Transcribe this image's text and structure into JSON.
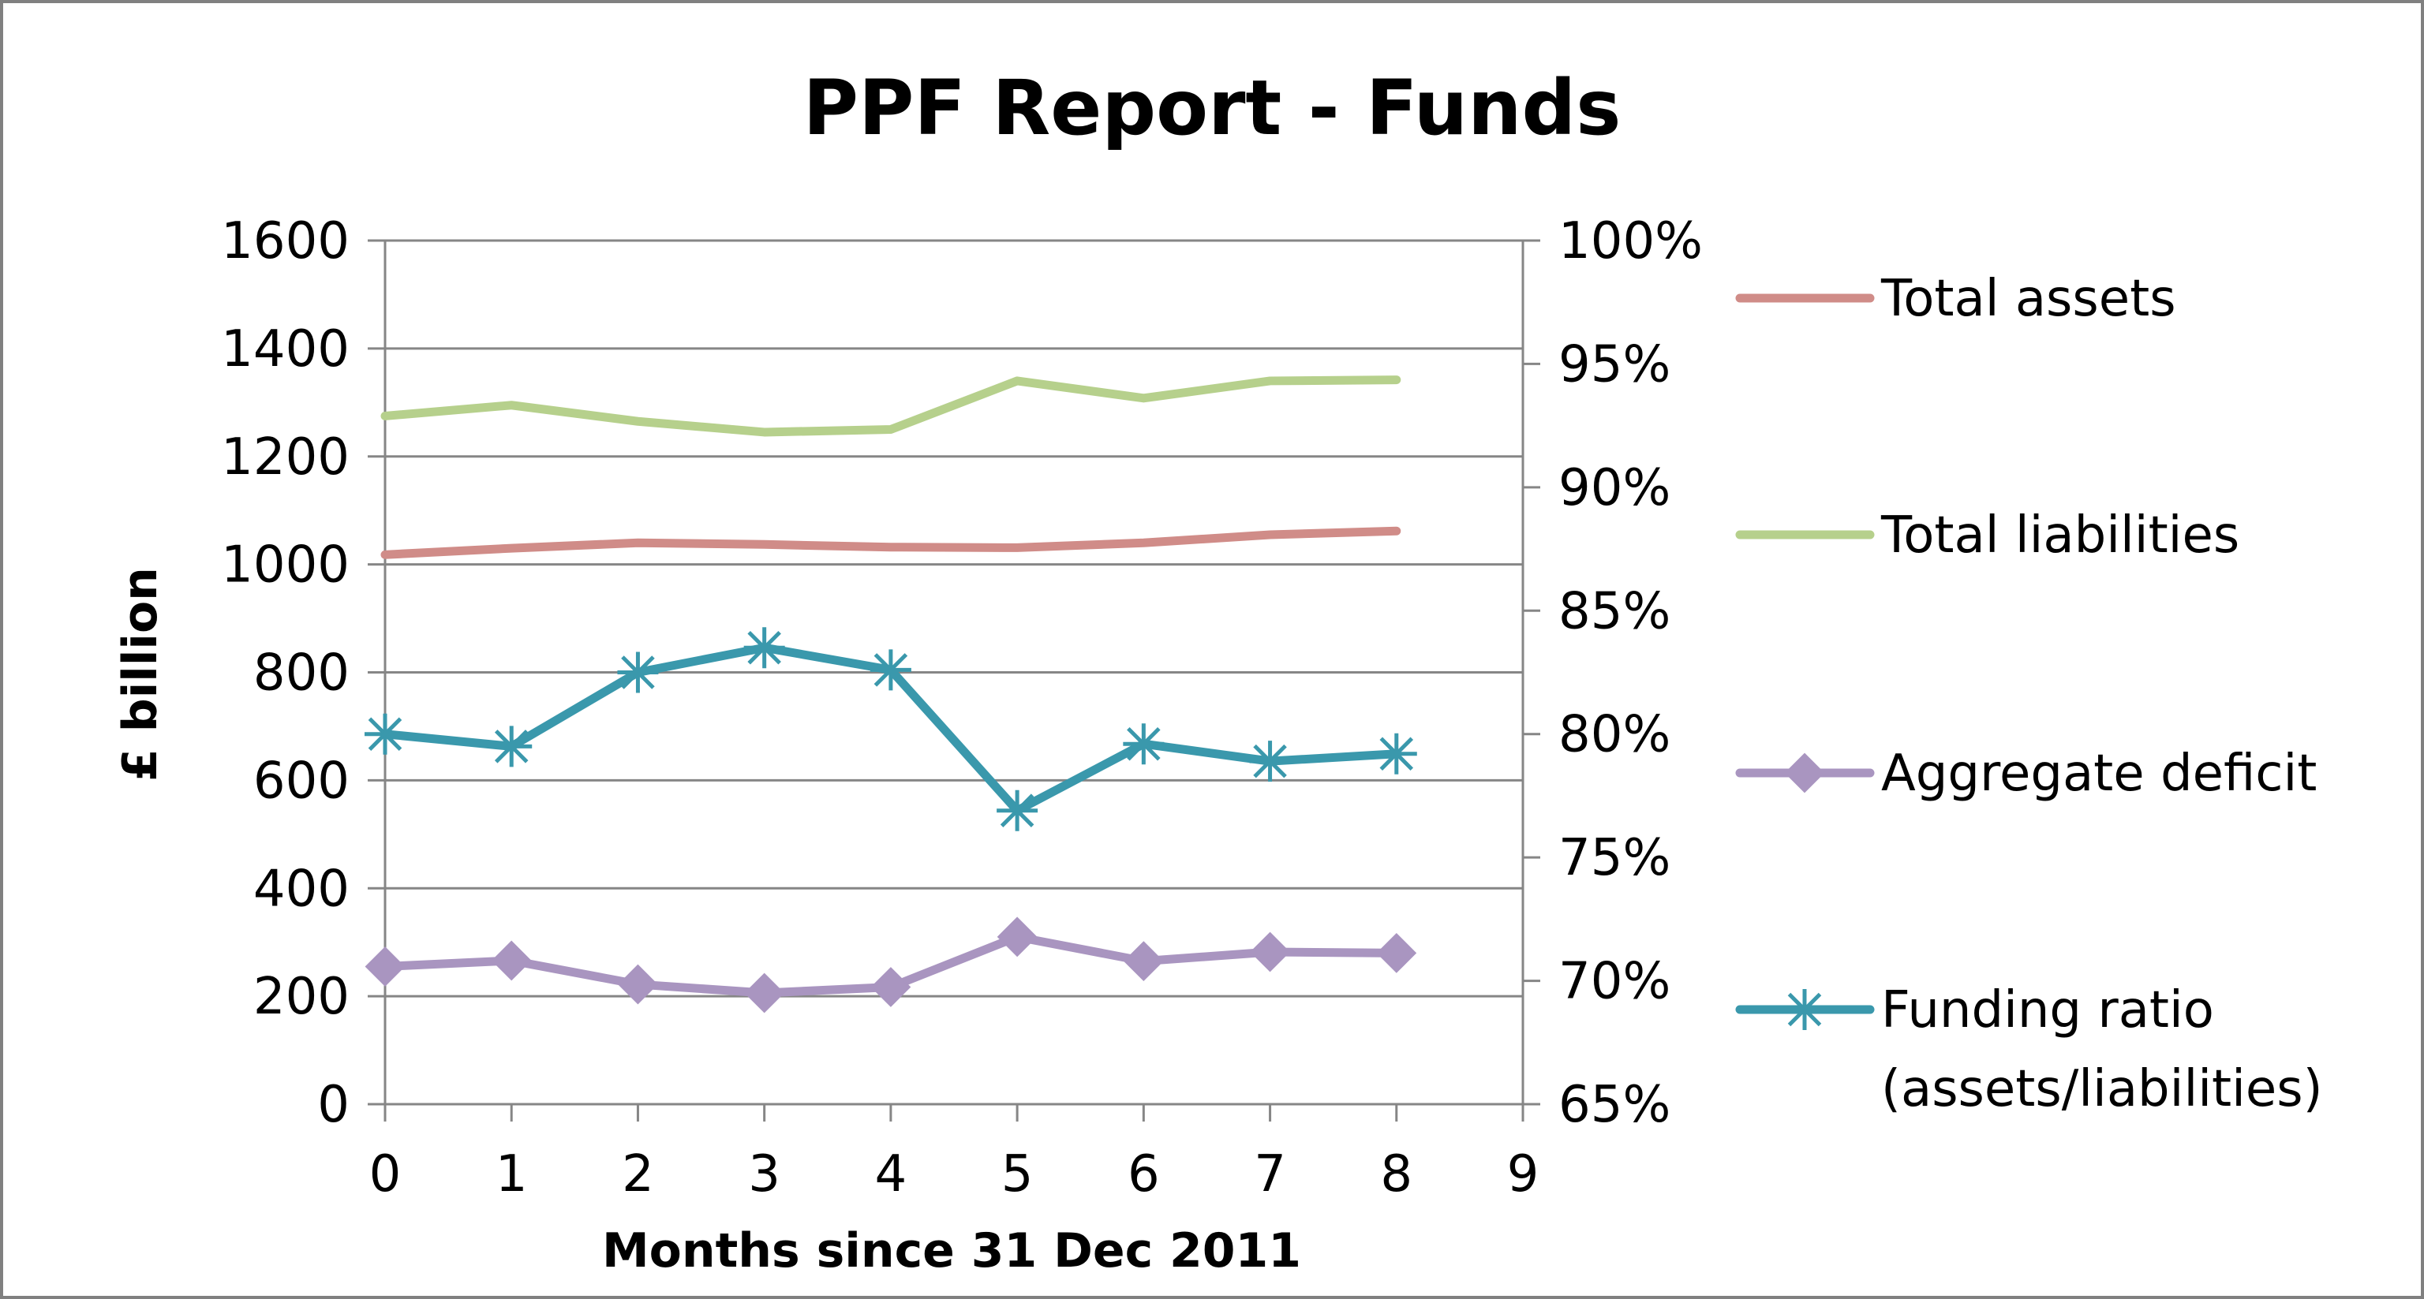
{
  "chart_data": {
    "type": "line",
    "title": "PPF Report - Funds",
    "xlabel": "Months since 31 Dec 2011",
    "ylabel": "£ billion",
    "x": [
      0,
      1,
      2,
      3,
      4,
      5,
      6,
      7,
      8
    ],
    "x_ticks": [
      "0",
      "1",
      "2",
      "3",
      "4",
      "5",
      "6",
      "7",
      "8",
      "9"
    ],
    "xlim": [
      0,
      9
    ],
    "ylim": [
      0,
      1600
    ],
    "y_ticks": [
      "0",
      "200",
      "400",
      "600",
      "800",
      "1000",
      "1200",
      "1400",
      "1600"
    ],
    "y2lim": [
      65,
      100
    ],
    "y2_ticks": [
      "65%",
      "70%",
      "75%",
      "80%",
      "85%",
      "90%",
      "95%",
      "100%"
    ],
    "grid": "horizontal",
    "legend_position": "right",
    "series": [
      {
        "name": "Total assets",
        "axis": "left",
        "color": "#d08c88",
        "marker": "none",
        "values": [
          1018,
          1030,
          1040,
          1037,
          1032,
          1031,
          1040,
          1055,
          1062
        ]
      },
      {
        "name": "Total liabilities",
        "axis": "left",
        "color": "#b6d08c",
        "marker": "none",
        "values": [
          1275,
          1295,
          1265,
          1245,
          1250,
          1340,
          1308,
          1340,
          1342
        ]
      },
      {
        "name": "Aggregate deficit",
        "axis": "left",
        "color": "#a995c0",
        "marker": "diamond",
        "values": [
          255,
          266,
          222,
          206,
          217,
          310,
          265,
          282,
          280
        ]
      },
      {
        "name": "Funding ratio\n(assets/liabilities)",
        "legend_lines": [
          "Funding ratio",
          "(assets/liabilities)"
        ],
        "axis": "right",
        "color": "#3a98ac",
        "marker": "star",
        "values": [
          80.0,
          79.5,
          82.5,
          83.5,
          82.6,
          76.9,
          79.6,
          78.9,
          79.2
        ]
      }
    ]
  }
}
